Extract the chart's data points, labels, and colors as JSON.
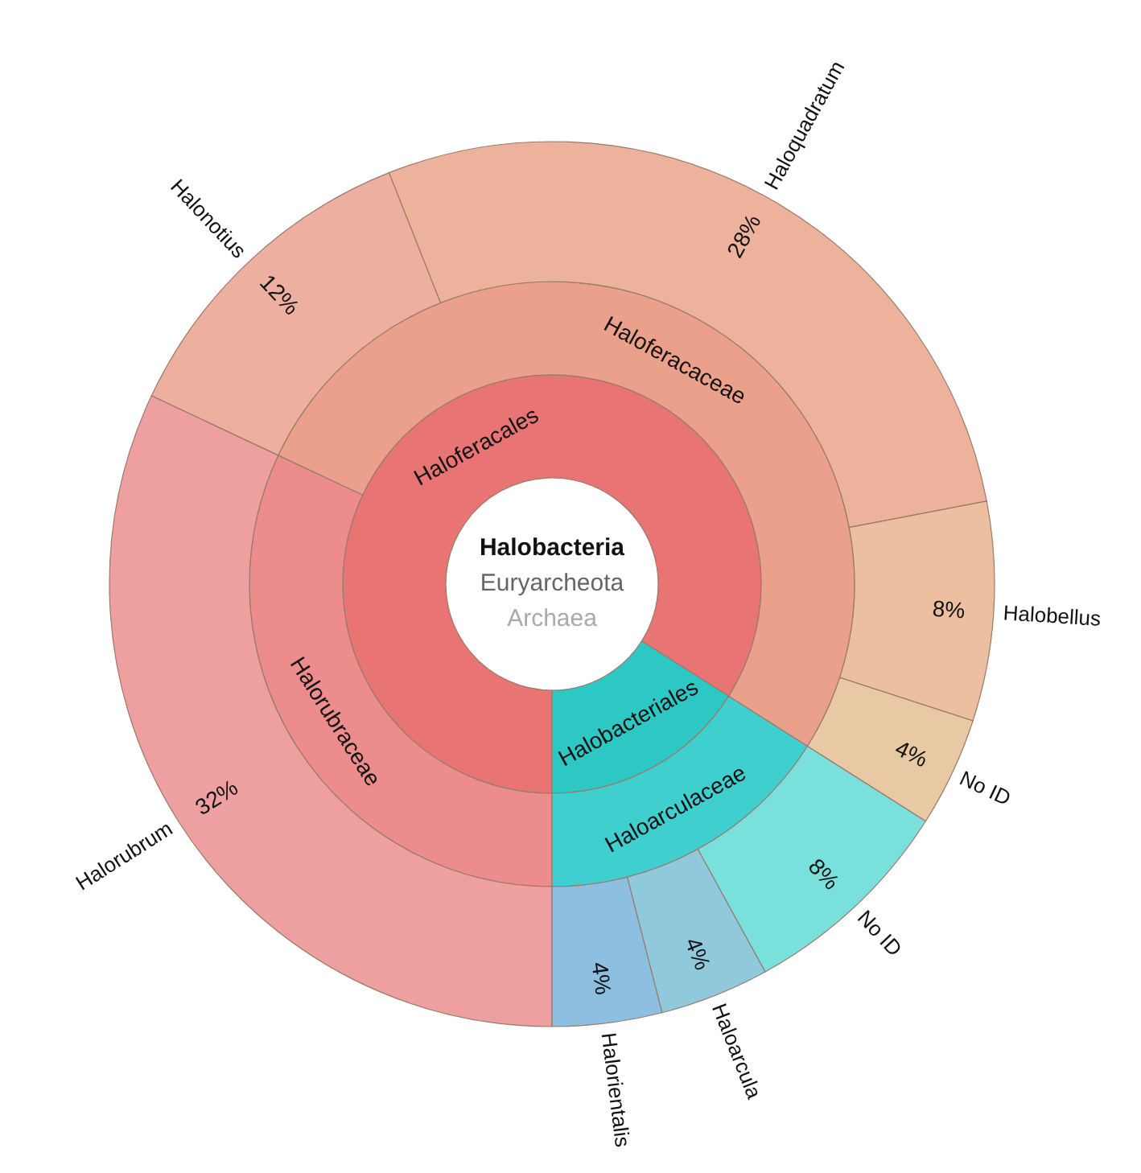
{
  "chart_data": [
    {
      "type": "donut",
      "title": "Halobacteria",
      "subtitle": "Euryarcheota",
      "annotations": [
        "Archaea"
      ],
      "categories": [
        "Haloferacales",
        "Halobacteriales"
      ],
      "values": [
        84,
        16
      ],
      "colors": [
        "#e87474",
        "#2ec8c4"
      ]
    },
    {
      "type": "donut",
      "categories": [
        "Halorubraceae",
        "Haloferacaceae",
        "Haloarculaceae"
      ],
      "values": [
        32,
        52,
        16
      ],
      "colors": [
        "#ec8c8c",
        "#eba08c",
        "#40cfcf"
      ]
    },
    {
      "type": "donut",
      "categories": [
        "Halorubrum",
        "Halonotius",
        "Haloquadratum",
        "Halobellus",
        "No ID",
        "No ID",
        "Haloarcula",
        "Halorientalis"
      ],
      "values": [
        32,
        12,
        28,
        8,
        4,
        8,
        4,
        4
      ],
      "value_labels": [
        "32%",
        "12%",
        "28%",
        "8%",
        "4%",
        "8%",
        "4%",
        "4%"
      ],
      "colors": [
        "#eea0a0",
        "#edb0a0",
        "#ecb29c",
        "#ebbf9f",
        "#e8c9a4",
        "#7ae0dc",
        "#90c8dc",
        "#8cbfe0"
      ]
    }
  ]
}
